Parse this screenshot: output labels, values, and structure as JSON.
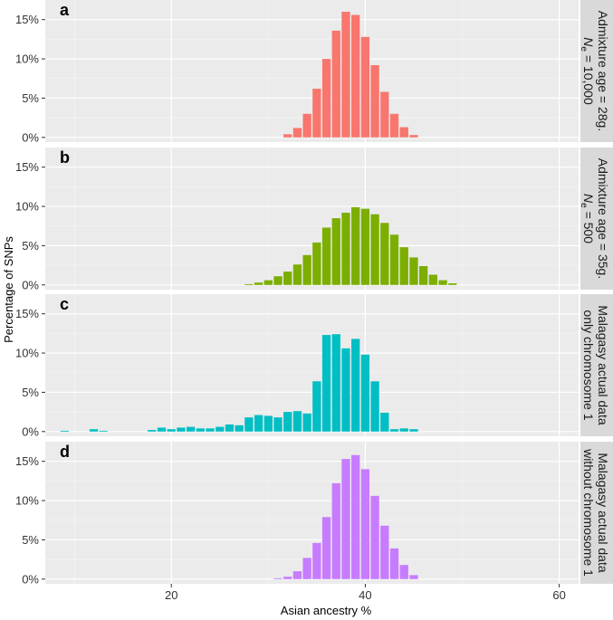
{
  "chart_data": {
    "type": "bar",
    "xlabel": "Asian ancestry %",
    "ylabel": "Percentage of SNPs",
    "xlim": [
      7,
      62
    ],
    "x_ticks": [
      20,
      40,
      60
    ],
    "x_tick_labels": [
      "20",
      "40",
      "60"
    ],
    "ylim": [
      -0.6,
      17.5
    ],
    "y_ticks": [
      0,
      5,
      10,
      15
    ],
    "y_tick_labels": [
      "0%",
      "5%",
      "10%",
      "15%"
    ],
    "bin_width": 1,
    "panels": [
      {
        "letter": "a",
        "color": "#F8766D",
        "strip_lines": [
          "Admixture age = 28g.",
          "N",
          "e",
          " = 10,000"
        ],
        "x": [
          32,
          33,
          34,
          35,
          36,
          37,
          38,
          39,
          40,
          41,
          42,
          43,
          44,
          45
        ],
        "values": [
          0.4,
          1.2,
          3.0,
          6.2,
          10.0,
          13.6,
          16.0,
          15.6,
          12.8,
          9.2,
          5.8,
          3.0,
          1.3,
          0.3
        ]
      },
      {
        "letter": "b",
        "color": "#7CAE00",
        "strip_lines": [
          "Admixture age = 35g.",
          "N",
          "e",
          " = 500"
        ],
        "x": [
          28,
          29,
          30,
          31,
          32,
          33,
          34,
          35,
          36,
          37,
          38,
          39,
          40,
          41,
          42,
          43,
          44,
          45,
          46,
          47,
          48,
          49
        ],
        "values": [
          0.1,
          0.3,
          0.6,
          1.1,
          1.7,
          2.6,
          3.8,
          5.4,
          7.3,
          8.5,
          9.2,
          9.9,
          9.7,
          9.0,
          7.9,
          6.4,
          4.8,
          3.5,
          2.4,
          1.3,
          0.6,
          0.2
        ]
      },
      {
        "letter": "c",
        "color": "#00BFC4",
        "strip_lines": [
          "Malagasy actual data",
          "only chromosome 1"
        ],
        "x": [
          9,
          12,
          13,
          18,
          19,
          20,
          21,
          22,
          23,
          24,
          25,
          26,
          27,
          28,
          29,
          30,
          31,
          32,
          33,
          34,
          35,
          36,
          37,
          38,
          39,
          40,
          41,
          42,
          43,
          44,
          45
        ],
        "values": [
          0.1,
          0.3,
          0.1,
          0.2,
          0.5,
          0.3,
          0.5,
          0.6,
          0.4,
          0.4,
          0.6,
          0.9,
          0.8,
          1.8,
          2.1,
          2.0,
          1.8,
          2.5,
          2.6,
          2.3,
          6.4,
          12.3,
          12.4,
          10.6,
          11.8,
          9.8,
          6.4,
          2.4,
          0.3,
          0.4,
          0.3
        ]
      },
      {
        "letter": "d",
        "color": "#C77CFF",
        "strip_lines": [
          "Malagasy actual data",
          "without chromosome 1"
        ],
        "x": [
          31,
          32,
          33,
          34,
          35,
          36,
          37,
          38,
          39,
          40,
          41,
          42,
          43,
          44,
          45
        ],
        "values": [
          0.1,
          0.3,
          1.0,
          2.7,
          4.6,
          7.9,
          12.2,
          15.3,
          15.8,
          14.0,
          10.6,
          6.8,
          3.9,
          1.8,
          0.5
        ]
      }
    ]
  }
}
